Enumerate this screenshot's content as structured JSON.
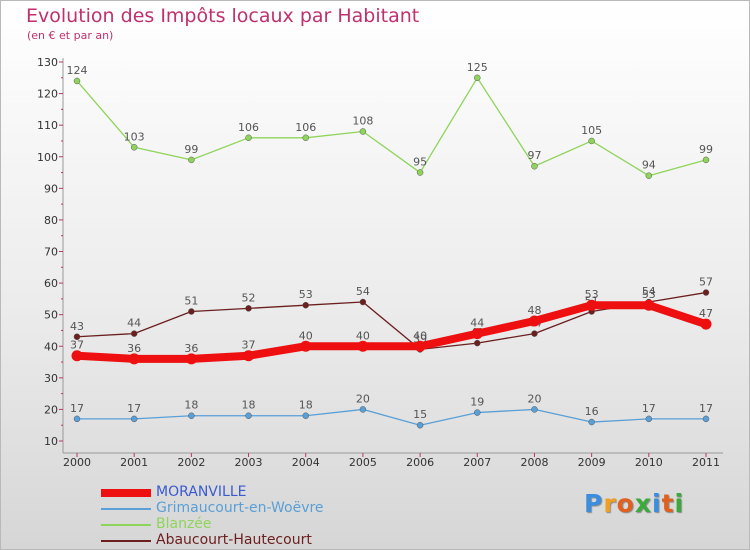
{
  "title": "Evolution des Impôts locaux par Habitant",
  "subtitle": "(en € et par an)",
  "logo": {
    "letters": [
      "P",
      "r",
      "o",
      "x",
      "i",
      "t",
      "i"
    ],
    "colors": [
      "#3a8ee0",
      "#f0a020",
      "#e06020",
      "#3aaa3a",
      "#3a8ee0",
      "#e06020",
      "#3aaa3a"
    ]
  },
  "chart_data": {
    "type": "line",
    "x": [
      "2000",
      "2001",
      "2002",
      "2003",
      "2004",
      "2005",
      "2006",
      "2007",
      "2008",
      "2009",
      "2010",
      "2011"
    ],
    "ylim": [
      10,
      130
    ],
    "yticks": [
      10,
      20,
      30,
      40,
      50,
      60,
      70,
      80,
      90,
      100,
      110,
      120,
      130
    ],
    "grid": false,
    "legend_position": "bottom-left",
    "series": [
      {
        "name": "Abaucourt-Hautecourt",
        "color": "#6b1f1f",
        "values": [
          43,
          44,
          51,
          52,
          53,
          54,
          39,
          41,
          44,
          51,
          54,
          57
        ]
      },
      {
        "name": "Grimaucourt-en-Woëvre",
        "color": "#5a9fd6",
        "values": [
          17,
          17,
          18,
          18,
          18,
          20,
          15,
          19,
          20,
          16,
          17,
          17
        ]
      },
      {
        "name": "Blanzée",
        "color": "#8fd45a",
        "values": [
          124,
          103,
          99,
          106,
          106,
          108,
          95,
          125,
          97,
          105,
          94,
          99
        ]
      },
      {
        "name": "MORANVILLE",
        "color": "#ee1010",
        "values": [
          37,
          36,
          36,
          37,
          40,
          40,
          40,
          44,
          48,
          53,
          53,
          47
        ]
      }
    ],
    "legend": [
      "MORANVILLE",
      "Grimaucourt-en-Woëvre",
      "Blanzée",
      "Abaucourt-Hautecourt"
    ]
  }
}
